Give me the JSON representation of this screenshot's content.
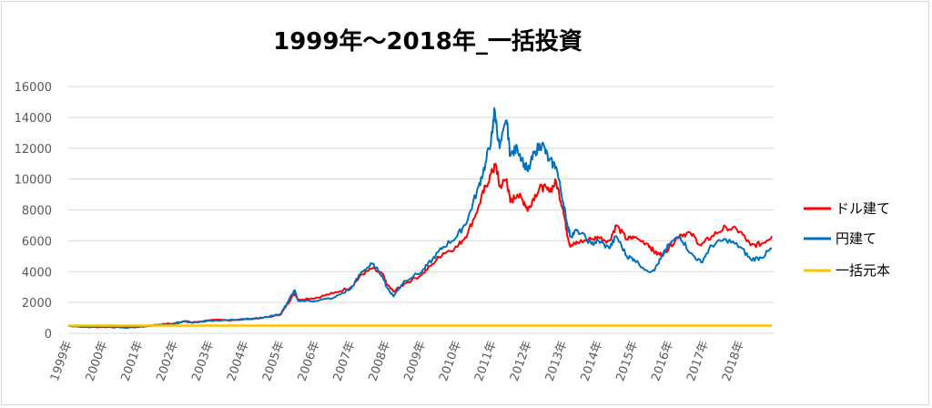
{
  "chart_data": {
    "type": "line",
    "title": "1999年～2018年_一括投資",
    "xlabel": "",
    "ylabel": "",
    "ylim": [
      0,
      16000
    ],
    "yticks": [
      0,
      2000,
      4000,
      6000,
      8000,
      10000,
      12000,
      14000,
      16000
    ],
    "categories": [
      "1999年",
      "2000年",
      "2001年",
      "2002年",
      "2003年",
      "2004年",
      "2005年",
      "2006年",
      "2007年",
      "2008年",
      "2009年",
      "2010年",
      "2011年",
      "2012年",
      "2013年",
      "2014年",
      "2015年",
      "2016年",
      "2017年",
      "2018年"
    ],
    "grid": true,
    "legend_position": "right",
    "series": [
      {
        "name": "ドル建て",
        "color": "#ff0000",
        "points": [
          [
            0,
            500
          ],
          [
            0.5,
            420
          ],
          [
            1,
            420
          ],
          [
            1.5,
            400
          ],
          [
            2,
            420
          ],
          [
            2.5,
            550
          ],
          [
            3,
            650
          ],
          [
            3.3,
            800
          ],
          [
            3.5,
            700
          ],
          [
            4,
            850
          ],
          [
            4.5,
            850
          ],
          [
            5,
            920
          ],
          [
            5.5,
            1000
          ],
          [
            6,
            1200
          ],
          [
            6.2,
            1900
          ],
          [
            6.4,
            2600
          ],
          [
            6.5,
            2200
          ],
          [
            7,
            2300
          ],
          [
            7.5,
            2600
          ],
          [
            8,
            3000
          ],
          [
            8.3,
            3800
          ],
          [
            8.6,
            4200
          ],
          [
            8.9,
            3800
          ],
          [
            9,
            3200
          ],
          [
            9.2,
            2700
          ],
          [
            9.5,
            3200
          ],
          [
            10,
            3800
          ],
          [
            10.3,
            4500
          ],
          [
            10.6,
            5200
          ],
          [
            11,
            5600
          ],
          [
            11.3,
            6500
          ],
          [
            11.6,
            8200
          ],
          [
            11.8,
            9500
          ],
          [
            12,
            10500
          ],
          [
            12.1,
            10900
          ],
          [
            12.2,
            9500
          ],
          [
            12.4,
            10000
          ],
          [
            12.5,
            8500
          ],
          [
            12.7,
            9000
          ],
          [
            12.9,
            8500
          ],
          [
            13,
            8000
          ],
          [
            13.2,
            9000
          ],
          [
            13.4,
            9500
          ],
          [
            13.6,
            9200
          ],
          [
            13.8,
            9800
          ],
          [
            14,
            8000
          ],
          [
            14.1,
            6600
          ],
          [
            14.2,
            5600
          ],
          [
            14.4,
            5900
          ],
          [
            14.8,
            6100
          ],
          [
            15,
            6200
          ],
          [
            15.3,
            6000
          ],
          [
            15.5,
            7000
          ],
          [
            15.8,
            6100
          ],
          [
            16,
            6200
          ],
          [
            16.4,
            5800
          ],
          [
            16.6,
            5200
          ],
          [
            16.8,
            5100
          ],
          [
            17,
            5600
          ],
          [
            17.3,
            6400
          ],
          [
            17.6,
            6500
          ],
          [
            17.9,
            5700
          ],
          [
            18.2,
            6300
          ],
          [
            18.6,
            6900
          ],
          [
            19,
            6600
          ],
          [
            19.3,
            5700
          ],
          [
            19.6,
            5800
          ],
          [
            19.9,
            6300
          ]
        ]
      },
      {
        "name": "円建て",
        "color": "#0070c0",
        "points": [
          [
            0,
            500
          ],
          [
            0.5,
            420
          ],
          [
            1,
            430
          ],
          [
            1.5,
            380
          ],
          [
            2,
            400
          ],
          [
            2.5,
            520
          ],
          [
            3,
            620
          ],
          [
            3.3,
            780
          ],
          [
            3.5,
            680
          ],
          [
            4,
            830
          ],
          [
            4.5,
            850
          ],
          [
            5,
            920
          ],
          [
            5.5,
            1000
          ],
          [
            6,
            1250
          ],
          [
            6.2,
            2000
          ],
          [
            6.4,
            2800
          ],
          [
            6.5,
            2100
          ],
          [
            7,
            2100
          ],
          [
            7.5,
            2300
          ],
          [
            8,
            2900
          ],
          [
            8.3,
            4000
          ],
          [
            8.6,
            4500
          ],
          [
            8.9,
            3700
          ],
          [
            9,
            3000
          ],
          [
            9.2,
            2400
          ],
          [
            9.5,
            3400
          ],
          [
            10,
            4000
          ],
          [
            10.3,
            4800
          ],
          [
            10.6,
            5600
          ],
          [
            11,
            6300
          ],
          [
            11.3,
            7400
          ],
          [
            11.6,
            9500
          ],
          [
            11.8,
            11000
          ],
          [
            12,
            13000
          ],
          [
            12.05,
            14600
          ],
          [
            12.2,
            12000
          ],
          [
            12.4,
            13800
          ],
          [
            12.5,
            11500
          ],
          [
            12.7,
            12000
          ],
          [
            12.9,
            11000
          ],
          [
            13,
            10500
          ],
          [
            13.2,
            11800
          ],
          [
            13.4,
            12300
          ],
          [
            13.6,
            11200
          ],
          [
            13.8,
            10800
          ],
          [
            14,
            8500
          ],
          [
            14.1,
            7200
          ],
          [
            14.2,
            6300
          ],
          [
            14.4,
            6700
          ],
          [
            14.8,
            5800
          ],
          [
            15,
            6000
          ],
          [
            15.3,
            5500
          ],
          [
            15.5,
            6300
          ],
          [
            15.8,
            5000
          ],
          [
            16,
            4800
          ],
          [
            16.4,
            4000
          ],
          [
            16.6,
            4200
          ],
          [
            16.8,
            5000
          ],
          [
            17,
            5800
          ],
          [
            17.3,
            6300
          ],
          [
            17.6,
            5200
          ],
          [
            17.9,
            4600
          ],
          [
            18.2,
            5700
          ],
          [
            18.6,
            6100
          ],
          [
            19,
            5600
          ],
          [
            19.3,
            4800
          ],
          [
            19.6,
            4900
          ],
          [
            19.9,
            5500
          ]
        ]
      },
      {
        "name": "一括元本",
        "color": "#ffc000",
        "points": [
          [
            0,
            500
          ],
          [
            19.9,
            500
          ]
        ]
      }
    ]
  }
}
